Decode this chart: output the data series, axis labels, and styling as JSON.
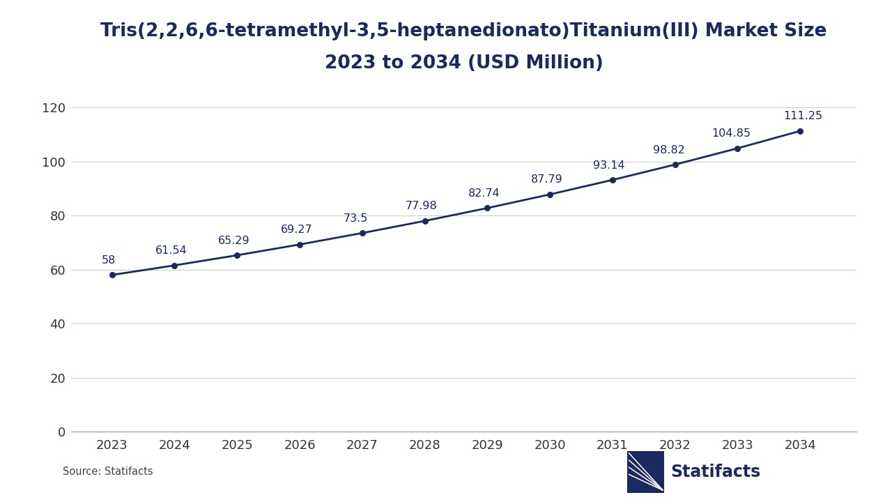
{
  "title_line1": "Tris(2,2,6,6-tetramethyl-3,5-heptanedionato)Titanium(III) Market Size",
  "title_line2": "2023 to 2034 (USD Million)",
  "years": [
    2023,
    2024,
    2025,
    2026,
    2027,
    2028,
    2029,
    2030,
    2031,
    2032,
    2033,
    2034
  ],
  "values": [
    58,
    61.54,
    65.29,
    69.27,
    73.5,
    77.98,
    82.74,
    87.79,
    93.14,
    98.82,
    104.85,
    111.25
  ],
  "line_color": "#1b2a5e",
  "marker_color": "#1b2a5e",
  "background_color": "#ffffff",
  "grid_color": "#cccccc",
  "text_color": "#1b2a5e",
  "annotation_color": "#1b2a5e",
  "yticks": [
    0,
    20,
    40,
    60,
    80,
    100,
    120
  ],
  "ylim": [
    0,
    130
  ],
  "source_text": "Source: Statifacts",
  "title_fontsize": 19,
  "axis_tick_fontsize": 13,
  "annotation_fontsize": 11.5
}
